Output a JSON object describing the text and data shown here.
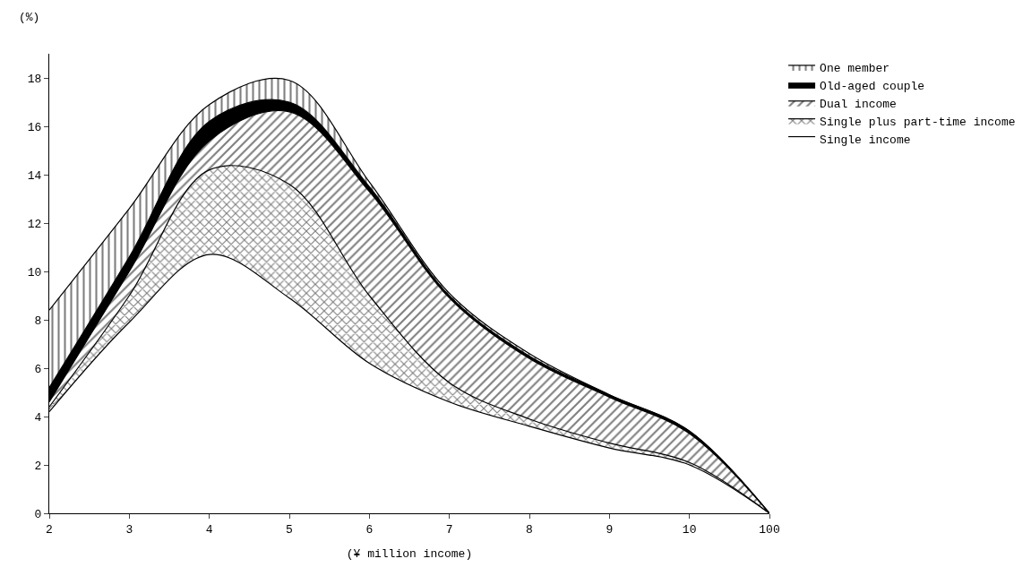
{
  "chart_data": {
    "type": "area",
    "stacked": true,
    "ylabel": "(%)",
    "xlabel": "(¥ million income)",
    "categories": [
      "2",
      "3",
      "4",
      "5",
      "6",
      "7",
      "8",
      "9",
      "10",
      "100"
    ],
    "ylim": [
      0,
      19
    ],
    "yticks": [
      0,
      2,
      4,
      6,
      8,
      10,
      12,
      14,
      16,
      18
    ],
    "legend": "right",
    "series": [
      {
        "name": "Single income",
        "color": "#ffffff",
        "values": [
          4.2,
          7.9,
          10.7,
          8.9,
          6.2,
          4.6,
          3.6,
          2.7,
          2.0,
          0
        ]
      },
      {
        "name": "Single plus part-time income",
        "color": "#000000",
        "values": [
          0.2,
          1.1,
          3.5,
          4.7,
          2.8,
          0.8,
          0.3,
          0.2,
          0.1,
          0
        ]
      },
      {
        "name": "Dual income",
        "color": "#000000",
        "values": [
          0.2,
          1.0,
          1.2,
          3.0,
          4.3,
          3.5,
          2.5,
          1.9,
          1.2,
          0
        ]
      },
      {
        "name": "Old-aged couple",
        "color": "#000000",
        "values": [
          0.6,
          0.6,
          0.8,
          0.4,
          0.2,
          0.1,
          0.1,
          0.1,
          0.1,
          0
        ]
      },
      {
        "name": "One member",
        "color": "#000000",
        "values": [
          3.2,
          2.0,
          0.7,
          0.9,
          0.2,
          0.1,
          0.1,
          0,
          0,
          0
        ]
      }
    ]
  }
}
